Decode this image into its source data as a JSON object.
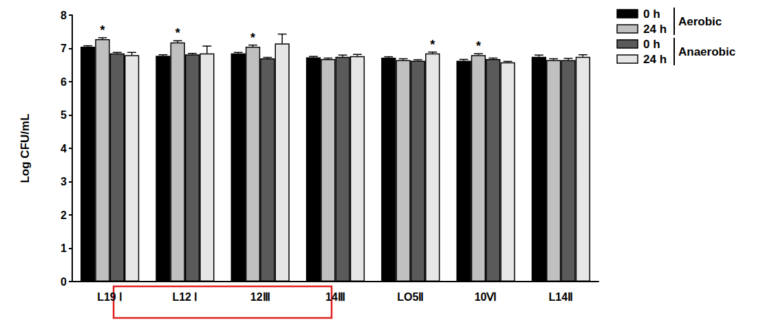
{
  "chart_data": {
    "type": "bar",
    "y_label": "Log CFU/mL",
    "categories": [
      "L19 Ⅰ",
      "L12 Ⅰ",
      "12Ⅲ",
      "14Ⅲ",
      "LO5Ⅱ",
      "10Ⅵ",
      "L14Ⅱ"
    ],
    "series": [
      {
        "name": "0 h",
        "color": "#000000",
        "values": [
          7.05,
          6.78,
          6.85,
          6.73,
          6.72,
          6.63,
          6.75
        ],
        "errors": [
          0.03,
          0.03,
          0.03,
          0.03,
          0.03,
          0.04,
          0.05
        ]
      },
      {
        "name": "24 h",
        "color": "#c0c0c0",
        "values": [
          7.28,
          7.18,
          7.05,
          6.68,
          6.65,
          6.8,
          6.65
        ],
        "errors": [
          0.04,
          0.05,
          0.05,
          0.03,
          0.04,
          0.04,
          0.04
        ]
      },
      {
        "name": "0 h",
        "color": "#5a5a5a",
        "values": [
          6.85,
          6.82,
          6.7,
          6.75,
          6.63,
          6.68,
          6.65
        ],
        "errors": [
          0.03,
          0.03,
          0.03,
          0.05,
          0.03,
          0.03,
          0.05
        ]
      },
      {
        "name": "24 h",
        "color": "#e6e6e6",
        "values": [
          6.8,
          6.85,
          7.15,
          6.77,
          6.85,
          6.58,
          6.75
        ],
        "errors": [
          0.08,
          0.22,
          0.28,
          0.05,
          0.04,
          0.03,
          0.06
        ]
      }
    ],
    "annotations": [
      {
        "text": "*",
        "category": "L19 Ⅰ",
        "series": 1
      },
      {
        "text": "*",
        "category": "L12 Ⅰ",
        "series": 1
      },
      {
        "text": "*",
        "category": "12Ⅲ",
        "series": 1
      },
      {
        "text": "*",
        "category": "LO5Ⅱ",
        "series": 3
      },
      {
        "text": "*",
        "category": "10Ⅵ",
        "series": 1
      },
      {
        "text": "Aerobic",
        "series": [
          0,
          1
        ]
      },
      {
        "text": "Anaerobic",
        "series": [
          2,
          3
        ]
      },
      {
        "shape": "box",
        "color": "#e02020",
        "categories": [
          "L12 Ⅰ",
          "12Ⅲ"
        ]
      }
    ],
    "ylim": [
      0,
      8
    ],
    "yticks": [
      0,
      1,
      2,
      3,
      4,
      5,
      6,
      7,
      8
    ],
    "grid": false,
    "legend": "upper right"
  }
}
